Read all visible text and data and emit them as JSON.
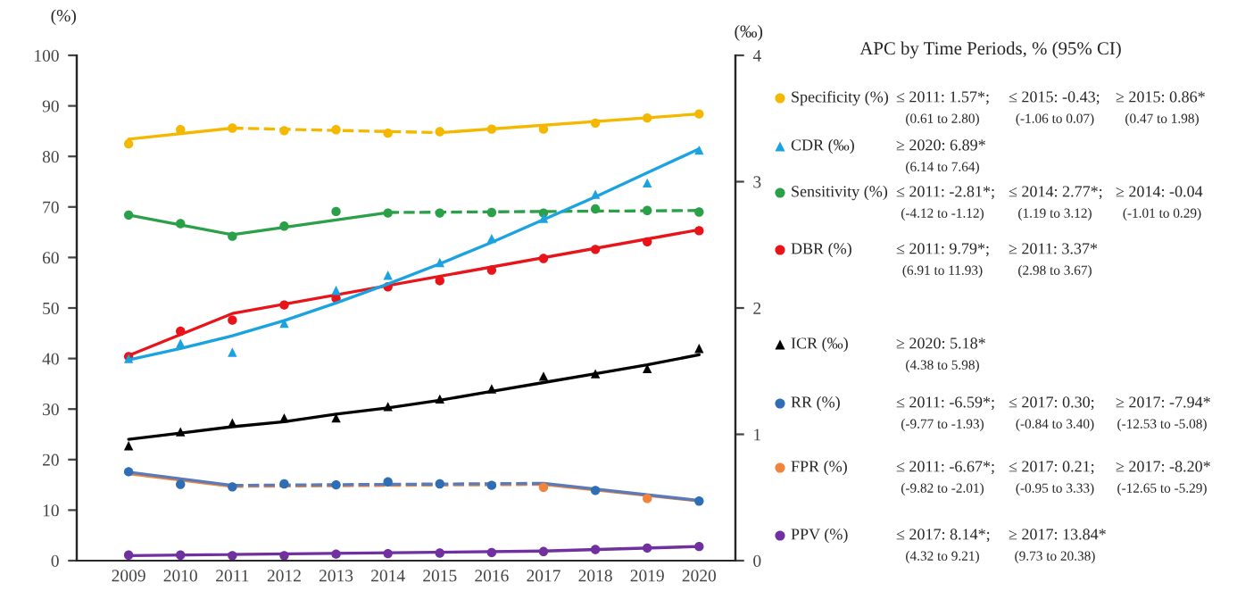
{
  "chart_data": {
    "type": "scatter",
    "x": [
      2009,
      2010,
      2011,
      2012,
      2013,
      2014,
      2015,
      2016,
      2017,
      2018,
      2019,
      2020
    ],
    "xlim": [
      2008,
      2020.7
    ],
    "xticks": [
      2009,
      2010,
      2011,
      2012,
      2013,
      2014,
      2015,
      2016,
      2017,
      2018,
      2019,
      2020
    ],
    "ylim": [
      0,
      100
    ],
    "yticks": [
      0,
      10,
      20,
      30,
      40,
      50,
      60,
      70,
      80,
      90,
      100
    ],
    "y2lim": [
      0,
      4
    ],
    "y2ticks": [
      0,
      1,
      2,
      3,
      4
    ],
    "ylabel": "(%)",
    "y2label": "(‰)",
    "grid": false,
    "legend": "right",
    "series": [
      {
        "type": "line",
        "color": "#f5b800",
        "line_style": "solid",
        "x": [
          2009,
          2011
        ],
        "values": [
          83.4,
          85.6
        ]
      },
      {
        "type": "line",
        "color": "#f5b800",
        "line_style": "dashed",
        "x": [
          2011,
          2015
        ],
        "values": [
          85.6,
          84.7
        ]
      },
      {
        "type": "line",
        "color": "#f5b800",
        "line_style": "solid",
        "x": [
          2015,
          2020
        ],
        "values": [
          84.7,
          88.4
        ]
      },
      {
        "type": "line",
        "color": "#1aa3e0",
        "line_style": "solid",
        "axis": "y2",
        "values": [
          1.59,
          1.68,
          1.78,
          1.9,
          2.04,
          2.19,
          2.35,
          2.52,
          2.7,
          2.88,
          3.07,
          3.26
        ]
      },
      {
        "type": "line",
        "color": "#2ca048",
        "line_style": "solid",
        "x": [
          2009,
          2011,
          2014
        ],
        "values": [
          68.4,
          64.5,
          68.9
        ]
      },
      {
        "type": "line",
        "color": "#2ca048",
        "line_style": "dashed",
        "x": [
          2014,
          2020
        ],
        "values": [
          68.9,
          69.3
        ]
      },
      {
        "type": "line",
        "color": "#e8141a",
        "line_style": "solid",
        "x": [
          2009,
          2011,
          2020
        ],
        "values": [
          40.6,
          48.9,
          65.5
        ]
      },
      {
        "type": "line",
        "color": "#000000",
        "line_style": "solid",
        "axis": "y2",
        "values": [
          0.96,
          1.01,
          1.06,
          1.1,
          1.16,
          1.21,
          1.27,
          1.34,
          1.41,
          1.48,
          1.55,
          1.63
        ]
      },
      {
        "type": "line",
        "color": "#f0843c",
        "line_style": "solid",
        "x": [
          2009,
          2011
        ],
        "values": [
          17.2,
          14.7
        ]
      },
      {
        "type": "line",
        "color": "#f0843c",
        "line_style": "dashed",
        "x": [
          2011,
          2017
        ],
        "values": [
          14.7,
          15.1
        ]
      },
      {
        "type": "line",
        "color": "#f0843c",
        "line_style": "solid",
        "x": [
          2017,
          2020
        ],
        "values": [
          15.1,
          11.8
        ]
      },
      {
        "type": "line",
        "color": "#5b7ab8",
        "line_style": "solid",
        "x": [
          2009,
          2011
        ],
        "values": [
          17.5,
          14.9
        ]
      },
      {
        "type": "line",
        "color": "#5b7ab8",
        "line_style": "dashed",
        "x": [
          2011,
          2017
        ],
        "values": [
          14.9,
          15.3
        ]
      },
      {
        "type": "line",
        "color": "#5b7ab8",
        "line_style": "solid",
        "x": [
          2017,
          2020
        ],
        "values": [
          15.3,
          11.9
        ]
      },
      {
        "type": "line",
        "color": "#7030a0",
        "line_style": "solid",
        "x": [
          2009,
          2017,
          2020
        ],
        "values": [
          1.0,
          1.9,
          2.8
        ]
      },
      {
        "name": "Specificity (%)",
        "color": "#f5b800",
        "marker": "circle",
        "values": [
          82.5,
          85.3,
          85.6,
          85.1,
          85.3,
          84.6,
          84.9,
          85.4,
          85.4,
          86.6,
          87.6,
          88.4
        ]
      },
      {
        "name": "CDR (‰)",
        "color": "#1aa3e0",
        "marker": "triangle",
        "axis": "y2",
        "values": [
          1.6,
          1.72,
          1.65,
          1.88,
          2.14,
          2.26,
          2.36,
          2.55,
          2.71,
          2.9,
          2.99,
          3.25
        ]
      },
      {
        "name": "Sensitivity (%)",
        "color": "#2ca048",
        "marker": "circle",
        "values": [
          68.4,
          66.7,
          64.2,
          66.2,
          69.1,
          68.8,
          68.8,
          68.9,
          68.8,
          69.6,
          69.3,
          69.0
        ]
      },
      {
        "name": "DBR (%)",
        "color": "#e8141a",
        "marker": "circle",
        "values": [
          40.4,
          45.4,
          47.6,
          50.6,
          51.9,
          54.2,
          55.4,
          57.5,
          59.8,
          61.6,
          63.1,
          65.3
        ]
      },
      {
        "name": "ICR (‰)",
        "color": "#000000",
        "marker": "triangle",
        "axis": "y2",
        "values": [
          0.91,
          1.02,
          1.09,
          1.13,
          1.13,
          1.22,
          1.28,
          1.36,
          1.46,
          1.48,
          1.52,
          1.68
        ]
      },
      {
        "name": "RR (%)",
        "color": "#2f6eb5",
        "marker": "circle",
        "values": [
          17.6,
          15.1,
          14.6,
          15.2,
          15.0,
          15.6,
          15.2,
          14.9,
          null,
          13.9,
          null,
          11.8
        ]
      },
      {
        "name": "FPR (%)",
        "color": "#f0843c",
        "marker": "circle",
        "values": [
          null,
          null,
          null,
          null,
          null,
          null,
          null,
          null,
          14.5,
          null,
          12.3,
          null
        ]
      },
      {
        "name": "PPV (%)",
        "color": "#7030a0",
        "marker": "circle",
        "values": [
          1.1,
          1.1,
          1.0,
          1.0,
          1.3,
          1.4,
          1.5,
          1.6,
          1.8,
          2.2,
          2.5,
          2.8
        ]
      }
    ],
    "annotations": [
      "APC by Time Periods, % (95% CI)",
      "≤ 2011: 1.57*;  ≤ 2015: -0.43;  ≥ 2015: 0.86*",
      "(0.61 to 2.80)  (-1.06 to 0.07)  (0.47 to 1.98)",
      "≥ 2020: 6.89*",
      "(6.14 to 7.64)",
      "≤ 2011: -2.81*;  ≤ 2014: 2.77*;  ≥ 2014: -0.04",
      "(-4.12 to -1.12)  (1.19 to 3.12)  (-1.01 to 0.29)",
      "≤ 2011: 9.79*;  ≥ 2011: 3.37*",
      "(6.91 to 11.93)  (2.98 to 3.67)",
      "≥ 2020: 5.18*",
      "(4.38 to 5.98)",
      "≤ 2011: -6.59*;  ≤ 2017: 0.30;  ≥ 2017: -7.94*",
      "(-9.77 to -1.93)  (-0.84 to 3.40)  (-12.53 to -5.08)",
      "≤ 2011: -6.67*;  ≤ 2017: 0.21;  ≥ 2017: -8.20*",
      "(-9.82 to -2.01)  (-0.95 to 3.33)  (-12.65 to -5.29)",
      "≤ 2017: 8.14*;  ≥ 2017: 13.84*",
      "(4.32 to 9.21)  (9.73 to 20.38)"
    ]
  }
}
